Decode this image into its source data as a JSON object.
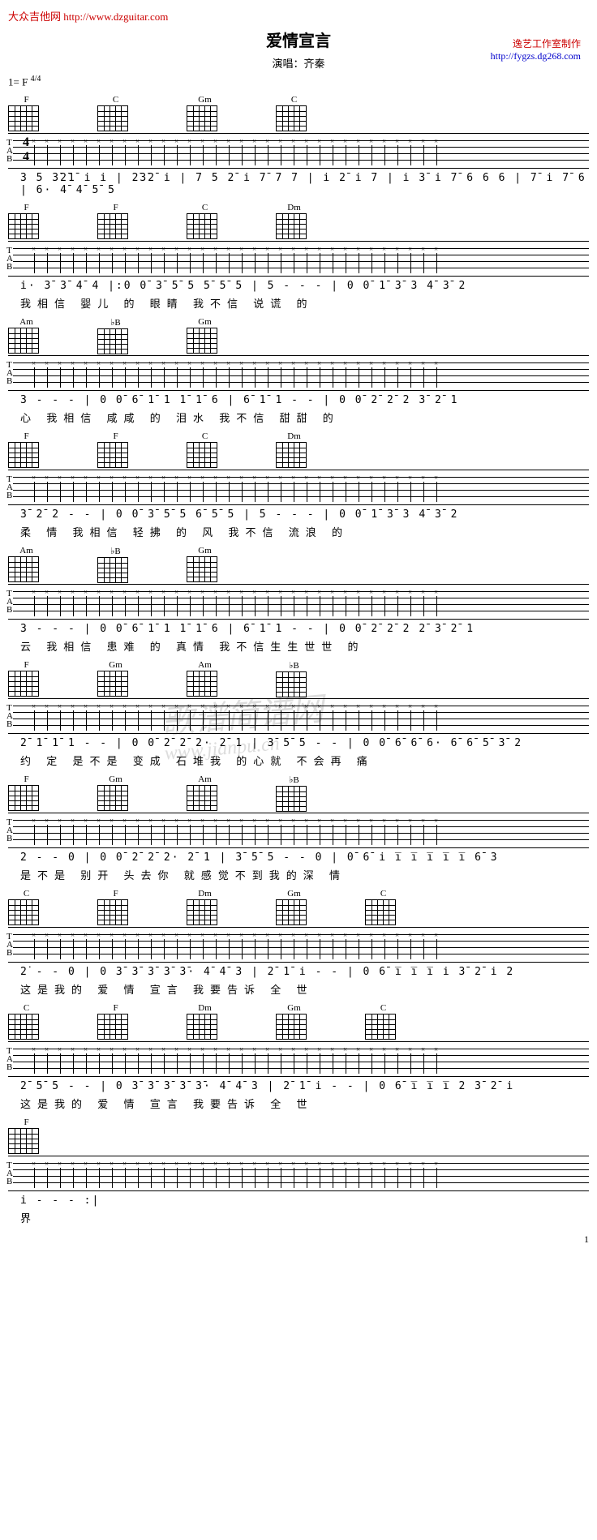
{
  "header": {
    "site_name": "大众吉他网",
    "site_url": "http://www.dzguitar.com",
    "title": "爱情宣言",
    "performer_label": "演唱：",
    "performer": "齐秦",
    "credit_line1": "逸艺工作室制作",
    "credit_url": "http://fygzs.dg268.com",
    "key_sig": "1= F",
    "time_sig": "4/4"
  },
  "systems": [
    {
      "chords": [
        "F",
        "C",
        "Gm",
        "C"
      ],
      "numbers": "3 5 3̄2̄1̄ i i | 2̄3̄2̄ i | 7 5  2̄ i 7̄ 7 7 | i 2̄ i 7 | i 3̄ i 7̄ 6 6 6 | 7̄ i 7̄ 6 | 6· 4̄ 4̄ 5̄ 5",
      "lyrics": ""
    },
    {
      "chords": [
        "F",
        "F",
        "C",
        "Dm"
      ],
      "numbers": "i·  3̄ 3̄ 4̄ 4 |:0  0̄ 3̄ 5̄ 5  5̄ 5̄ 5 | 5  - - - | 0  0̄ 1̄ 3̄ 3  4̄ 3̄ 2",
      "lyrics": "我相信 婴儿 的  眼睛              我不信 说谎 的"
    },
    {
      "chords": [
        "Am",
        "♭B",
        "Gm"
      ],
      "numbers": "3  - - - | 0  0̄ 6̄ 1̄ 1  1̄ 1̄ 6 | 6̄ 1̄ 1 - - | 0  0̄ 2̄ 2̄ 2  3̄ 2̄ 1",
      "lyrics": "心          我相信 咸咸 的 泪水            我不信 甜甜 的"
    },
    {
      "chords": [
        "F",
        "F",
        "C",
        "Dm"
      ],
      "numbers": "3̄ 2̄ 2 - - | 0  0̄ 3̄ 5̄ 5  6̄ 5̄ 5 | 5  - - - | 0  0̄ 1̄ 3̄ 3  4̄ 3̄ 2",
      "lyrics": "柔 情        我相信 轻拂 的 风              我不信 流浪 的"
    },
    {
      "chords": [
        "Am",
        "♭B",
        "Gm"
      ],
      "numbers": "3  - - - | 0  0̄ 6̄ 1̄ 1  1̄ 1̄ 6 | 6̄ 1̄ 1 - - | 0  0̄ 2̄ 2̄ 2 2̄  3̄ 2̄ 1",
      "lyrics": "云          我相信 患难 的 真情          我不信生生世世 的"
    },
    {
      "chords": [
        "F",
        "Gm",
        "Am",
        "♭B"
      ],
      "numbers": "2̄ 1̄ 1̄ 1 - - | 0  0̄ 2̄ 2̄ 2· 2̄ 1 | 3̄ 5̄ 5 - - | 0  0̄ 6̄ 6̄ 6· 6̄ 6̄ 5̄ 3̄ 2",
      "lyrics": "约 定          是不是  变成 石堆我        的心就  不会再 痛"
    },
    {
      "chords": [
        "F",
        "Gm",
        "Am",
        "♭B"
      ],
      "numbers": "2  - - 0 | 0  0̄ 2̄ 2̄ 2· 2̄ 1 | 3̄ 5̄ 5 - - 0 | 0̄ 6̄ i i̅ i̅ i̅ i̅ i̅ 6̄ 3",
      "lyrics": "           是不是  别开 头去你        就感觉不到我的深 情"
    },
    {
      "chords": [
        "C",
        "F",
        "Dm",
        "Gm",
        "C"
      ],
      "numbers": "2̇ - - 0 | 0  3̄ 3̄ 3̄ 3̄ 3̄· 4̄ 4̄ 3 | 2̄ 1̄ i - - | 0  6̄ i̅ i̅ i̅ i 3̄ 2̄ i 2",
      "lyrics": "           这是我的  爱 情 宣言        我要告诉  全 世"
    },
    {
      "chords": [
        "C",
        "F",
        "Dm",
        "Gm",
        "C"
      ],
      "numbers": "2̄ 5̄ 5 - - | 0  3̄ 3̄ 3̄ 3̄ 3̄· 4̄ 4̄ 3 | 2̄ 1̄ i - - | 0  6̄ i̅ i̅ i̅ 2 3̄ 2̄ i",
      "lyrics": "           这是我的  爱 情 宣言        我要告诉  全 世"
    },
    {
      "chords": [
        "F"
      ],
      "numbers": "i  - - - :|",
      "lyrics": "界"
    }
  ],
  "watermark": {
    "text1": "歌谱简谱网",
    "text2": "www.jianpu.cn"
  },
  "page_num": "1",
  "colors": {
    "text": "#000000",
    "link_red": "#cc0000",
    "link_blue": "#0000cc",
    "watermark": "#dddddd",
    "bg": "#ffffff"
  }
}
